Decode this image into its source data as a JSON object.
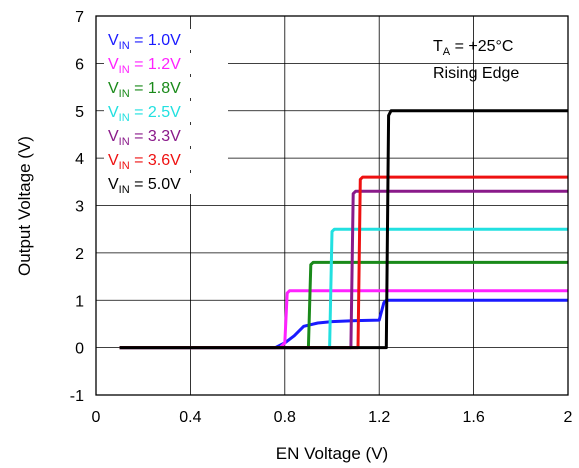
{
  "chart_data": {
    "type": "line",
    "title": "",
    "xlabel": "EN Voltage (V)",
    "ylabel": "Output Voltage (V)",
    "xlim": [
      0,
      2
    ],
    "ylim": [
      -1,
      7
    ],
    "xticks": [
      "0",
      "0.4",
      "0.8",
      "1.2",
      "1.6",
      "2"
    ],
    "yticks": [
      "-1",
      "0",
      "1",
      "2",
      "3",
      "4",
      "5",
      "6",
      "7"
    ],
    "grid": true,
    "legend_position": "top-left",
    "annotation": {
      "t_prefix": "T",
      "t_sub": "A",
      "t_suffix": " = +25°C",
      "edge": "Rising Edge"
    },
    "series": [
      {
        "name": "VIN = 1.0V",
        "label_main": "V",
        "label_sub": "IN",
        "label_value": " = 1.0V",
        "color": "#1a1aff",
        "x": [
          0.1,
          0.76,
          0.8,
          0.84,
          0.88,
          0.94,
          1.0,
          1.1,
          1.2,
          1.22,
          1.23,
          1.25,
          2.0
        ],
        "y": [
          0,
          0,
          0.1,
          0.25,
          0.45,
          0.52,
          0.55,
          0.57,
          0.58,
          0.95,
          1.0,
          1.0,
          1.0
        ]
      },
      {
        "name": "VIN = 1.2V",
        "label_main": "V",
        "label_sub": "IN",
        "label_value": " = 1.2V",
        "color": "#ff22ff",
        "x": [
          0.1,
          0.78,
          0.8,
          0.81,
          0.82,
          2.0
        ],
        "y": [
          0,
          0,
          0.1,
          1.15,
          1.2,
          1.2
        ]
      },
      {
        "name": "VIN = 1.8V",
        "label_main": "V",
        "label_sub": "IN",
        "label_value": " = 1.8V",
        "color": "#1a8a1a",
        "x": [
          0.1,
          0.9,
          0.91,
          0.92,
          2.0
        ],
        "y": [
          0,
          0,
          1.75,
          1.8,
          1.8
        ]
      },
      {
        "name": "VIN = 2.5V",
        "label_main": "V",
        "label_sub": "IN",
        "label_value": " = 2.5V",
        "color": "#22e0e0",
        "x": [
          0.1,
          0.99,
          1.0,
          1.01,
          2.0
        ],
        "y": [
          0,
          0,
          2.45,
          2.5,
          2.5
        ]
      },
      {
        "name": "VIN = 3.3V",
        "label_main": "V",
        "label_sub": "IN",
        "label_value": " = 3.3V",
        "color": "#8a1a8a",
        "x": [
          0.1,
          1.08,
          1.09,
          1.1,
          2.0
        ],
        "y": [
          0,
          0,
          3.25,
          3.3,
          3.3
        ]
      },
      {
        "name": "VIN = 3.6V",
        "label_main": "V",
        "label_sub": "IN",
        "label_value": " = 3.6V",
        "color": "#ee1111",
        "x": [
          0.1,
          1.11,
          1.12,
          1.13,
          2.0
        ],
        "y": [
          0,
          0,
          3.55,
          3.6,
          3.6
        ]
      },
      {
        "name": "VIN = 5.0V",
        "label_main": "V",
        "label_sub": "IN",
        "label_value": " = 5.0V",
        "color": "#000000",
        "x": [
          0.1,
          1.23,
          1.24,
          1.25,
          2.0
        ],
        "y": [
          0,
          0,
          4.9,
          5.0,
          5.0
        ]
      }
    ]
  }
}
